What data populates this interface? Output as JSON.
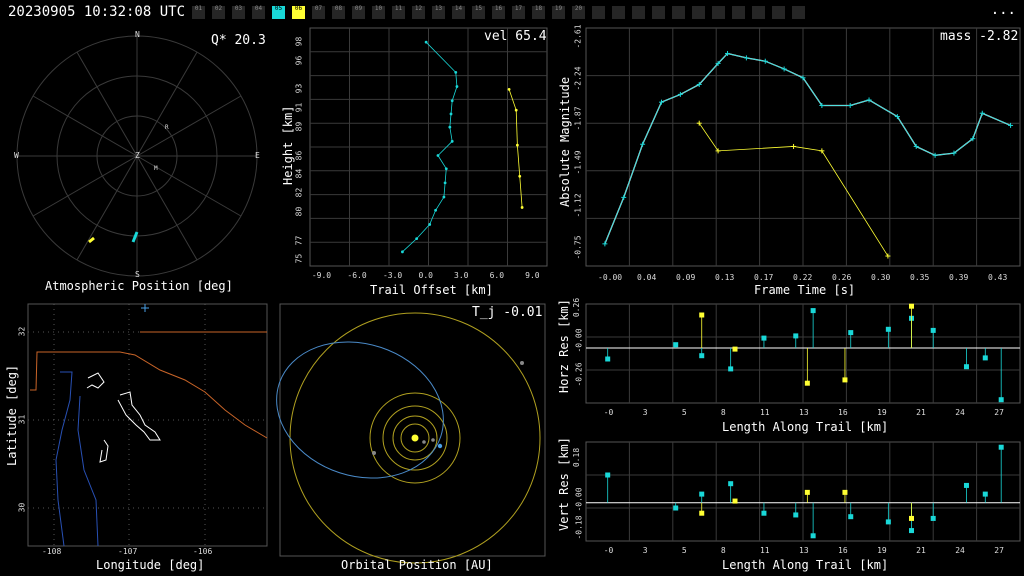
{
  "header": {
    "timestamp": "20230905 10:32:08 UTC",
    "menu_label": "...",
    "frames": [
      {
        "label": "01",
        "state": "off"
      },
      {
        "label": "02",
        "state": "off"
      },
      {
        "label": "03",
        "state": "off"
      },
      {
        "label": "04",
        "state": "off"
      },
      {
        "label": "05",
        "state": "cyan"
      },
      {
        "label": "06",
        "state": "yellow"
      },
      {
        "label": "07",
        "state": "off"
      },
      {
        "label": "08",
        "state": "off"
      },
      {
        "label": "09",
        "state": "off"
      },
      {
        "label": "10",
        "state": "off"
      },
      {
        "label": "11",
        "state": "off"
      },
      {
        "label": "12",
        "state": "off"
      },
      {
        "label": "13",
        "state": "off"
      },
      {
        "label": "14",
        "state": "off"
      },
      {
        "label": "15",
        "state": "off"
      },
      {
        "label": "16",
        "state": "off"
      },
      {
        "label": "17",
        "state": "off"
      },
      {
        "label": "18",
        "state": "off"
      },
      {
        "label": "19",
        "state": "off"
      },
      {
        "label": "20",
        "state": "off"
      },
      {
        "label": "",
        "state": "off"
      },
      {
        "label": "",
        "state": "off"
      },
      {
        "label": "",
        "state": "off"
      },
      {
        "label": "",
        "state": "off"
      },
      {
        "label": "",
        "state": "off"
      },
      {
        "label": "",
        "state": "off"
      },
      {
        "label": "",
        "state": "off"
      },
      {
        "label": "",
        "state": "off"
      },
      {
        "label": "",
        "state": "off"
      },
      {
        "label": "",
        "state": "off"
      },
      {
        "label": "",
        "state": "off"
      }
    ]
  },
  "colors": {
    "cyan": "#19d8d8",
    "yellow": "#ffff33",
    "grid": "#3a3a3a",
    "orange": "#c86428",
    "blue": "#2850b4",
    "lightblue": "#4aa0e6"
  },
  "panels": {
    "atmo": {
      "label": "Atmospheric Position [deg]",
      "stat": "Q* 20.3",
      "n": "N",
      "s": "S",
      "e": "E",
      "w": "W",
      "zenith": "Z",
      "marker_r": "R",
      "marker_m": "M"
    },
    "trail": {
      "xlabel": "Trail Offset [km]",
      "ylabel": "Height [km]",
      "stat": "vel 65.4",
      "xticks": [
        "-9.0",
        "-6.0",
        "-3.0",
        "0.0",
        "3.0",
        "6.0",
        "9.0"
      ],
      "yticks": [
        "75",
        "77",
        "80",
        "82",
        "84",
        "86",
        "89",
        "91",
        "93",
        "96",
        "98"
      ]
    },
    "mag": {
      "xlabel": "Frame Time [s]",
      "ylabel": "Absolute Magnitude",
      "stat": "mass -2.82",
      "xticks": [
        "-0.00",
        "0.04",
        "0.09",
        "0.13",
        "0.17",
        "0.22",
        "0.26",
        "0.30",
        "0.35",
        "0.39",
        "0.43"
      ],
      "yticks": [
        "-2.61",
        "-2.24",
        "-1.87",
        "-1.49",
        "-1.12",
        "-0.75"
      ]
    },
    "map": {
      "xlabel": "Longitude [deg]",
      "ylabel": "Latitude [deg]",
      "xticks": [
        "-108",
        "-107",
        "-106"
      ],
      "yticks": [
        "32",
        "31",
        "30"
      ]
    },
    "orbit": {
      "xlabel": "Orbital Position [AU]",
      "stat": "T_j -0.01"
    },
    "horz": {
      "xlabel": "Length Along Trail [km]",
      "ylabel": "Horz Res [km]",
      "yticks": [
        "0.26",
        "-0.00",
        "-0.26"
      ],
      "xticks": [
        "-0",
        "3",
        "5",
        "8",
        "11",
        "13",
        "16",
        "19",
        "21",
        "24",
        "27"
      ]
    },
    "vert": {
      "xlabel": "Length Along Trail [km]",
      "ylabel": "Vert Res [km]",
      "yticks": [
        "0.18",
        "-0.00",
        "-0.18"
      ],
      "xticks": [
        "-0",
        "3",
        "5",
        "8",
        "11",
        "13",
        "16",
        "19",
        "21",
        "24",
        "27"
      ]
    }
  },
  "chart_data": [
    {
      "type": "scatter",
      "name": "trail",
      "series": [
        {
          "color": "cyan",
          "points": [
            [
              -0.2,
              98.0
            ],
            [
              2.3,
              94.8
            ],
            [
              2.4,
              93.3
            ],
            [
              2.0,
              91.8
            ],
            [
              1.9,
              90.4
            ],
            [
              1.8,
              89.0
            ],
            [
              2.0,
              87.5
            ],
            [
              0.8,
              86.0
            ],
            [
              1.5,
              84.6
            ],
            [
              1.4,
              83.1
            ],
            [
              1.3,
              81.6
            ],
            [
              0.6,
              80.2
            ],
            [
              0.1,
              78.7
            ],
            [
              -1.0,
              77.2
            ],
            [
              -2.2,
              75.8
            ]
          ]
        },
        {
          "color": "yellow",
          "points": [
            [
              6.8,
              93.0
            ],
            [
              7.4,
              90.8
            ],
            [
              7.5,
              87.1
            ],
            [
              7.7,
              83.8
            ],
            [
              7.9,
              80.5
            ]
          ]
        }
      ]
    },
    {
      "type": "line",
      "name": "magnitude",
      "series": [
        {
          "color": "cyan",
          "points": [
            [
              0.0,
              -0.8
            ],
            [
              0.02,
              -1.22
            ],
            [
              0.04,
              -1.7
            ],
            [
              0.06,
              -2.08
            ],
            [
              0.08,
              -2.15
            ],
            [
              0.1,
              -2.24
            ],
            [
              0.12,
              -2.43
            ],
            [
              0.13,
              -2.52
            ],
            [
              0.15,
              -2.48
            ],
            [
              0.17,
              -2.45
            ],
            [
              0.19,
              -2.38
            ],
            [
              0.21,
              -2.3
            ],
            [
              0.23,
              -2.05
            ],
            [
              0.26,
              -2.05
            ],
            [
              0.28,
              -2.1
            ],
            [
              0.31,
              -1.95
            ],
            [
              0.33,
              -1.68
            ],
            [
              0.35,
              -1.6
            ],
            [
              0.37,
              -1.62
            ],
            [
              0.39,
              -1.75
            ],
            [
              0.4,
              -1.98
            ],
            [
              0.43,
              -1.87
            ]
          ]
        },
        {
          "color": "yellow",
          "points": [
            [
              0.1,
              -1.89
            ],
            [
              0.12,
              -1.64
            ],
            [
              0.2,
              -1.68
            ],
            [
              0.23,
              -1.64
            ],
            [
              0.3,
              -0.69
            ]
          ]
        }
      ]
    },
    {
      "type": "scatter",
      "name": "horizontal-residuals",
      "series": [
        {
          "color": "cyan",
          "points": [
            [
              0.0,
              -0.1
            ],
            [
              4.7,
              0.03
            ],
            [
              6.5,
              -0.07
            ],
            [
              8.5,
              -0.19
            ],
            [
              10.8,
              0.09
            ],
            [
              13.0,
              0.11
            ],
            [
              14.2,
              0.34
            ],
            [
              16.8,
              0.14
            ],
            [
              19.4,
              0.17
            ],
            [
              21.0,
              0.27
            ],
            [
              22.5,
              0.16
            ],
            [
              24.8,
              -0.17
            ],
            [
              26.1,
              -0.09
            ],
            [
              27.2,
              -0.47
            ]
          ]
        },
        {
          "color": "yellow",
          "points": [
            [
              6.5,
              0.3
            ],
            [
              8.8,
              -0.01
            ],
            [
              13.8,
              -0.32
            ],
            [
              16.4,
              -0.29
            ],
            [
              21.0,
              0.38
            ]
          ]
        }
      ]
    },
    {
      "type": "scatter",
      "name": "vertical-residuals",
      "series": [
        {
          "color": "cyan",
          "points": [
            [
              0.0,
              0.16
            ],
            [
              4.7,
              -0.03
            ],
            [
              6.5,
              0.05
            ],
            [
              8.5,
              0.11
            ],
            [
              10.8,
              -0.06
            ],
            [
              13.0,
              -0.07
            ],
            [
              14.2,
              -0.19
            ],
            [
              16.8,
              -0.08
            ],
            [
              19.4,
              -0.11
            ],
            [
              21.0,
              -0.16
            ],
            [
              22.5,
              -0.09
            ],
            [
              24.8,
              0.1
            ],
            [
              26.1,
              0.05
            ],
            [
              27.2,
              0.32
            ]
          ]
        },
        {
          "color": "yellow",
          "points": [
            [
              6.5,
              -0.06
            ],
            [
              8.8,
              0.01
            ],
            [
              13.8,
              0.06
            ],
            [
              16.4,
              0.06
            ],
            [
              21.0,
              -0.09
            ]
          ]
        }
      ]
    }
  ]
}
